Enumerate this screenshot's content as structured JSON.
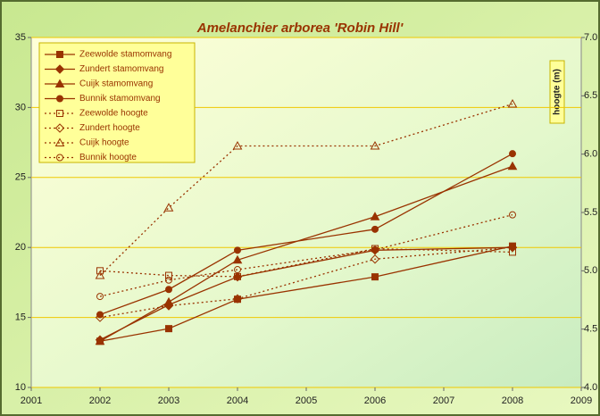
{
  "chart_data": {
    "type": "line",
    "title": "Amelanchier arborea 'Robin Hill'",
    "y2label": "hoogte (m)",
    "x": [
      2002,
      2003,
      2004,
      2006,
      2008
    ],
    "xlim": [
      2001,
      2009
    ],
    "xticks": [
      2001,
      2002,
      2003,
      2004,
      2005,
      2006,
      2007,
      2008,
      2009
    ],
    "ylim": [
      10,
      35
    ],
    "yticks": [
      10,
      15,
      20,
      25,
      30,
      35
    ],
    "y2lim": [
      4,
      7
    ],
    "y2ticks": [
      {
        "value": 4,
        "label": "4.0"
      },
      4.5,
      {
        "value": 5,
        "label": "5.0"
      },
      5.5,
      {
        "value": 6,
        "label": "6.0"
      },
      6.5,
      {
        "value": 7,
        "label": "7.0"
      }
    ],
    "grid": true,
    "legend": "upper left",
    "series": [
      {
        "name": "Zeewolde stamomvang",
        "color": "#993300",
        "marker": "square",
        "filled": true,
        "dashed": false,
        "values": [
          13.3,
          14.2,
          16.3,
          17.9,
          20.1
        ]
      },
      {
        "name": "Zundert stamomvang",
        "color": "#993300",
        "marker": "diamond",
        "filled": true,
        "dashed": false,
        "values": [
          13.4,
          15.9,
          17.9,
          19.8,
          20.0
        ]
      },
      {
        "name": "Cuijk stamomvang",
        "color": "#993300",
        "marker": "triangle",
        "filled": true,
        "dashed": false,
        "values": [
          13.3,
          16.1,
          19.1,
          22.2,
          25.8
        ]
      },
      {
        "name": "Bunnik stamomvang",
        "color": "#993300",
        "marker": "circle",
        "filled": true,
        "dashed": false,
        "values": [
          15.2,
          17.0,
          19.8,
          21.3,
          26.7
        ]
      },
      {
        "name": "Zeewolde hoogte",
        "color": "#993300",
        "marker": "square",
        "filled": false,
        "dashed": true,
        "axis": "y2",
        "values": [
          5.0,
          4.96,
          4.95,
          5.19,
          5.16
        ]
      },
      {
        "name": "Zundert hoogte",
        "color": "#993300",
        "marker": "diamond",
        "filled": false,
        "dashed": true,
        "axis": "y2",
        "values": [
          4.6,
          4.7,
          4.76,
          5.1,
          5.2
        ]
      },
      {
        "name": "Cuijk hoogte",
        "color": "#993300",
        "marker": "triangle",
        "filled": false,
        "dashed": true,
        "axis": "y2",
        "values": [
          4.96,
          5.54,
          6.07,
          6.07,
          6.43
        ]
      },
      {
        "name": "Bunnik hoogte",
        "color": "#993300",
        "marker": "circle",
        "filled": false,
        "dashed": true,
        "axis": "y2",
        "values": [
          4.78,
          4.92,
          5.01,
          5.18,
          5.48
        ]
      }
    ]
  }
}
